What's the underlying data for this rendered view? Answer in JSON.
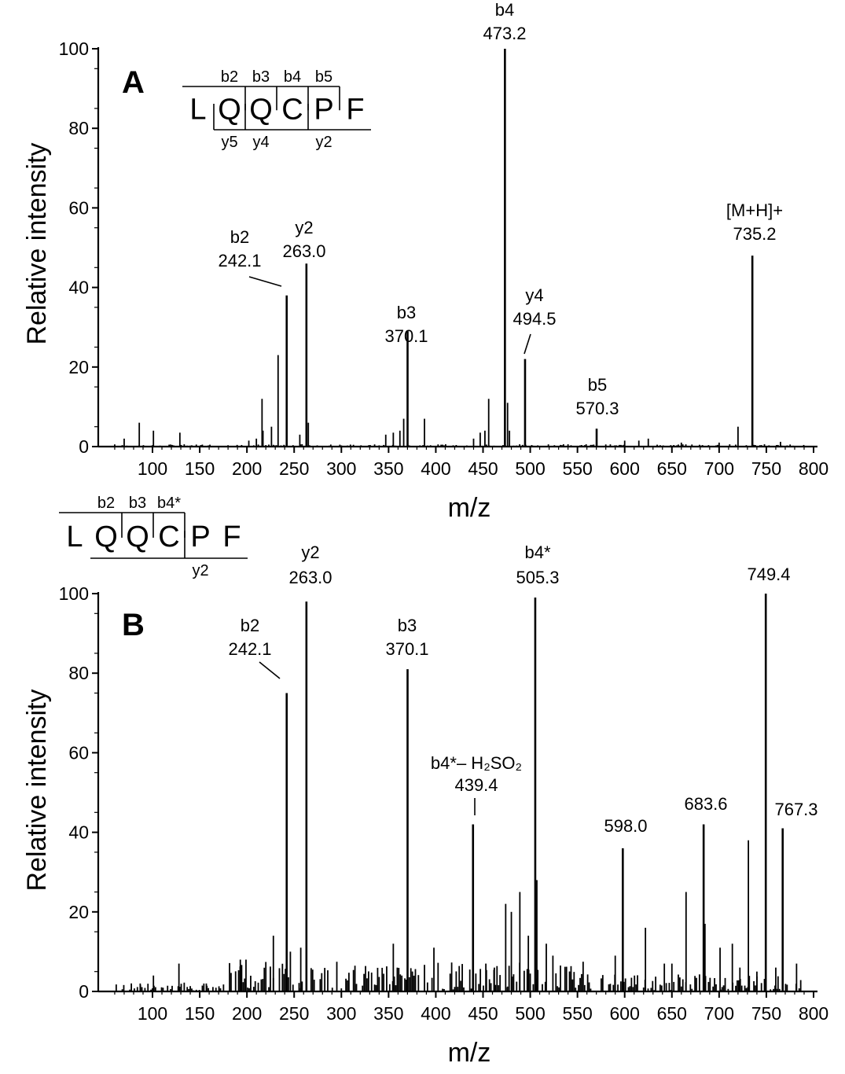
{
  "chart_data": [
    {
      "panel": "A",
      "type": "bar",
      "xlabel": "m/z",
      "ylabel": "Relative intensity",
      "xlim": [
        50,
        800
      ],
      "ylim": [
        0,
        100
      ],
      "x_ticks": [
        100,
        150,
        200,
        250,
        300,
        350,
        400,
        450,
        500,
        550,
        600,
        650,
        700,
        750,
        800
      ],
      "y_ticks": [
        0,
        20,
        40,
        60,
        80,
        100
      ],
      "sequence": [
        "L",
        "Q",
        "Q",
        "C",
        "P",
        "F"
      ],
      "b_ions": [
        "b2",
        "b3",
        "b4",
        "b5"
      ],
      "y_ions": [
        "y5",
        "y4",
        "y2"
      ],
      "peaks": [
        {
          "mz": 473.2,
          "intensity": 100,
          "label": [
            "b4",
            "473.2"
          ]
        },
        {
          "mz": 735.2,
          "intensity": 48,
          "label": [
            "[M+H]+",
            "735.2"
          ]
        },
        {
          "mz": 263.0,
          "intensity": 46,
          "label": [
            "y2",
            "263.0"
          ]
        },
        {
          "mz": 242.1,
          "intensity": 38,
          "label": [
            "b2",
            "242.1"
          ]
        },
        {
          "mz": 370.1,
          "intensity": 29,
          "label": [
            "b3",
            "370.1"
          ]
        },
        {
          "mz": 494.5,
          "intensity": 22,
          "label": [
            "y4",
            "494.5"
          ]
        },
        {
          "mz": 570.3,
          "intensity": 4.5,
          "label": [
            "b5",
            "570.3"
          ]
        },
        {
          "mz": 233,
          "intensity": 23
        },
        {
          "mz": 216,
          "intensity": 12
        },
        {
          "mz": 456,
          "intensity": 12
        },
        {
          "mz": 476,
          "intensity": 11
        },
        {
          "mz": 86,
          "intensity": 6
        },
        {
          "mz": 366,
          "intensity": 7
        },
        {
          "mz": 388,
          "intensity": 7
        },
        {
          "mz": 720,
          "intensity": 5
        },
        {
          "mz": 101,
          "intensity": 4
        },
        {
          "mz": 129,
          "intensity": 3.5
        },
        {
          "mz": 226,
          "intensity": 5
        },
        {
          "mz": 256,
          "intensity": 3
        },
        {
          "mz": 265,
          "intensity": 6
        },
        {
          "mz": 347,
          "intensity": 3
        },
        {
          "mz": 355,
          "intensity": 3.5
        },
        {
          "mz": 362,
          "intensity": 4
        },
        {
          "mz": 447,
          "intensity": 3.5
        },
        {
          "mz": 452,
          "intensity": 4
        },
        {
          "mz": 478,
          "intensity": 4
        },
        {
          "mz": 440,
          "intensity": 2
        },
        {
          "mz": 70,
          "intensity": 2
        },
        {
          "mz": 217,
          "intensity": 4
        },
        {
          "mz": 202,
          "intensity": 1.5
        },
        {
          "mz": 210,
          "intensity": 2
        },
        {
          "mz": 600,
          "intensity": 1.5
        },
        {
          "mz": 615,
          "intensity": 1.5
        },
        {
          "mz": 625,
          "intensity": 2
        },
        {
          "mz": 660,
          "intensity": 1
        },
        {
          "mz": 700,
          "intensity": 1
        },
        {
          "mz": 765,
          "intensity": 1.2
        }
      ]
    },
    {
      "panel": "B",
      "type": "bar",
      "xlabel": "m/z",
      "ylabel": "Relative intensity",
      "xlim": [
        50,
        800
      ],
      "ylim": [
        0,
        100
      ],
      "x_ticks": [
        100,
        150,
        200,
        250,
        300,
        350,
        400,
        450,
        500,
        550,
        600,
        650,
        700,
        750,
        800
      ],
      "y_ticks": [
        0,
        20,
        40,
        60,
        80,
        100
      ],
      "sequence": [
        "L",
        "Q",
        "Q",
        "C",
        "P",
        "F"
      ],
      "b_ions": [
        "b2",
        "b3",
        "b4*"
      ],
      "y_ions": [
        "y2"
      ],
      "peaks": [
        {
          "mz": 263.0,
          "intensity": 98,
          "label": [
            "y2",
            "263.0"
          ]
        },
        {
          "mz": 505.3,
          "intensity": 99,
          "label": [
            "b4*",
            "505.3"
          ]
        },
        {
          "mz": 749.4,
          "intensity": 100,
          "label": [
            "749.4"
          ]
        },
        {
          "mz": 370.1,
          "intensity": 81,
          "label": [
            "b3",
            "370.1"
          ]
        },
        {
          "mz": 242.1,
          "intensity": 75,
          "label": [
            "b2",
            "242.1"
          ]
        },
        {
          "mz": 439.4,
          "intensity": 42,
          "label": [
            "b4*– H₂SO₂",
            "439.4"
          ]
        },
        {
          "mz": 683.6,
          "intensity": 42,
          "label": [
            "683.6"
          ]
        },
        {
          "mz": 767.3,
          "intensity": 41,
          "label": [
            "767.3"
          ]
        },
        {
          "mz": 598.0,
          "intensity": 36,
          "label": [
            "598.0"
          ]
        },
        {
          "mz": 731,
          "intensity": 38
        },
        {
          "mz": 507,
          "intensity": 28
        },
        {
          "mz": 489,
          "intensity": 25
        },
        {
          "mz": 665,
          "intensity": 25
        },
        {
          "mz": 474,
          "intensity": 22
        },
        {
          "mz": 480,
          "intensity": 20
        },
        {
          "mz": 685,
          "intensity": 17
        },
        {
          "mz": 622,
          "intensity": 16
        },
        {
          "mz": 228,
          "intensity": 14
        },
        {
          "mz": 714,
          "intensity": 12
        },
        {
          "mz": 701,
          "intensity": 11
        },
        {
          "mz": 517,
          "intensity": 12
        },
        {
          "mz": 498,
          "intensity": 14
        },
        {
          "mz": 524,
          "intensity": 9
        },
        {
          "mz": 590,
          "intensity": 9
        },
        {
          "mz": 782,
          "intensity": 7
        },
        {
          "mz": 128,
          "intensity": 7
        },
        {
          "mz": 193,
          "intensity": 8
        },
        {
          "mz": 199,
          "intensity": 8
        },
        {
          "mz": 246,
          "intensity": 10
        },
        {
          "mz": 257,
          "intensity": 11
        },
        {
          "mz": 355,
          "intensity": 12
        },
        {
          "mz": 398,
          "intensity": 11
        },
        {
          "mz": 101,
          "intensity": 4
        },
        {
          "mz": 157,
          "intensity": 2
        },
        {
          "mz": 650,
          "intensity": 7
        },
        {
          "mz": 642,
          "intensity": 7
        },
        {
          "mz": 722,
          "intensity": 6
        },
        {
          "mz": 740,
          "intensity": 5
        },
        {
          "mz": 760,
          "intensity": 6
        },
        {
          "mz": 87,
          "intensity": 2
        },
        {
          "mz": 453,
          "intensity": 7
        },
        {
          "mz": 462,
          "intensity": 6
        }
      ]
    }
  ]
}
